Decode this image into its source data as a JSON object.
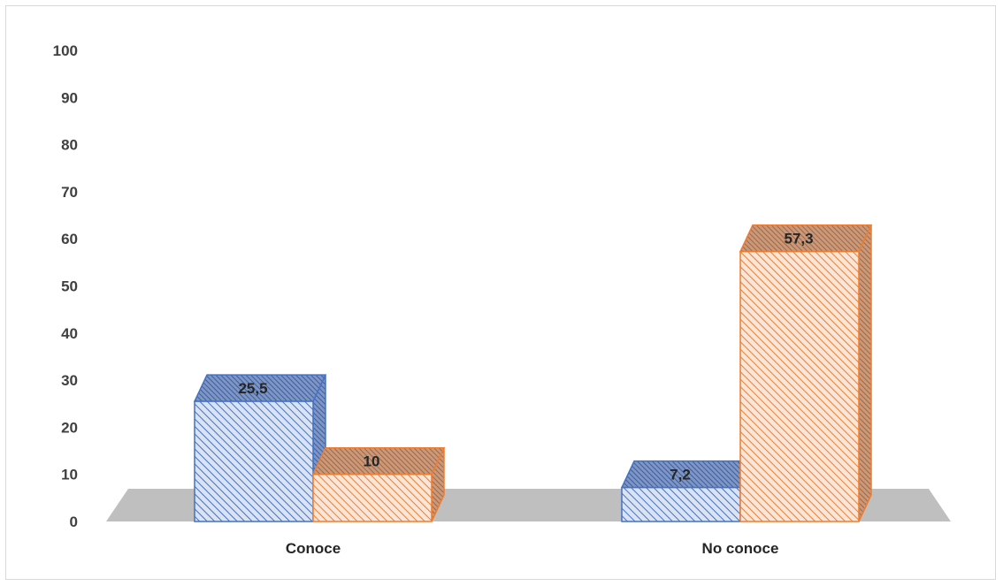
{
  "chart_data": {
    "type": "bar",
    "style": "3d-clustered-column",
    "categories": [
      "Conoce",
      "No conoce"
    ],
    "series": [
      {
        "values": [
          25.5,
          7.2
        ],
        "color": "#4472c4",
        "fill_light": "#dae3f3"
      },
      {
        "values": [
          10,
          57.3
        ],
        "color": "#ed7d31",
        "fill_light": "#fbe5d6"
      }
    ],
    "data_labels": [
      [
        "25,5",
        "7,2"
      ],
      [
        "10",
        "57,3"
      ]
    ],
    "y_ticks": [
      "0",
      "10",
      "20",
      "30",
      "40",
      "50",
      "60",
      "70",
      "80",
      "90",
      "100"
    ],
    "ylim": [
      0,
      100
    ],
    "floor_color": "#bfbfbf",
    "grid": false,
    "legend": "none"
  }
}
